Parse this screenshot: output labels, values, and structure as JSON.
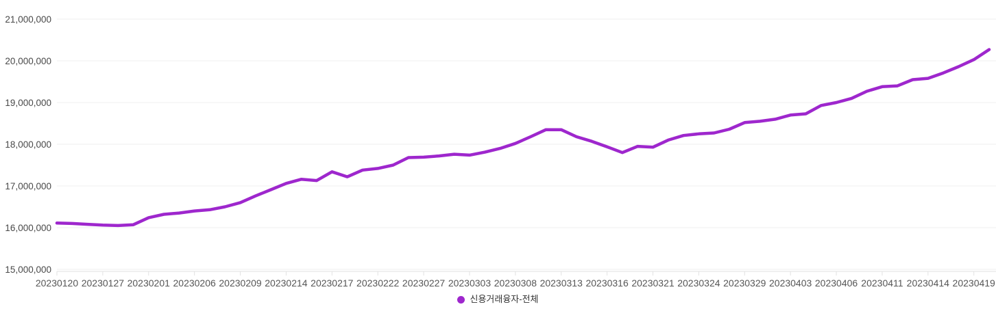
{
  "chart_data": {
    "type": "line",
    "title": "",
    "xlabel": "",
    "ylabel": "",
    "grid": "horizontal",
    "legend_position": "bottom-center",
    "ylim": [
      15000000,
      21000000
    ],
    "y_ticks": [
      15000000,
      16000000,
      17000000,
      18000000,
      19000000,
      20000000,
      21000000
    ],
    "y_tick_labels": [
      "15,000,000",
      "16,000,000",
      "17,000,000",
      "18,000,000",
      "19,000,000",
      "20,000,000",
      "21,000,000"
    ],
    "x_tick_every": 3,
    "x_tick_labels": [
      "20230120",
      "20230127",
      "20230201",
      "20230206",
      "20230209",
      "20230214",
      "20230217",
      "20230222",
      "20230227",
      "20230303",
      "20230308",
      "20230313",
      "20230316",
      "20230321",
      "20230324",
      "20230329",
      "20230403",
      "20230406",
      "20230411",
      "20230414",
      "20230419"
    ],
    "x": [
      "20230120",
      "20230125",
      "20230126",
      "20230127",
      "20230130",
      "20230131",
      "20230201",
      "20230202",
      "20230203",
      "20230206",
      "20230207",
      "20230208",
      "20230209",
      "20230210",
      "20230213",
      "20230214",
      "20230215",
      "20230216",
      "20230217",
      "20230220",
      "20230221",
      "20230222",
      "20230223",
      "20230224",
      "20230227",
      "20230228",
      "20230302",
      "20230303",
      "20230306",
      "20230307",
      "20230308",
      "20230309",
      "20230310",
      "20230313",
      "20230314",
      "20230315",
      "20230316",
      "20230317",
      "20230320",
      "20230321",
      "20230322",
      "20230323",
      "20230324",
      "20230327",
      "20230328",
      "20230329",
      "20230330",
      "20230331",
      "20230403",
      "20230404",
      "20230405",
      "20230406",
      "20230407",
      "20230410",
      "20230411",
      "20230412",
      "20230413",
      "20230414",
      "20230417",
      "20230418",
      "20230419",
      "20230420"
    ],
    "series": [
      {
        "name": "신용거래융자-전체",
        "color": "#9e27cd",
        "values": [
          16110000,
          16100000,
          16080000,
          16060000,
          16050000,
          16070000,
          16240000,
          16320000,
          16350000,
          16400000,
          16430000,
          16500000,
          16600000,
          16760000,
          16910000,
          17060000,
          17160000,
          17130000,
          17340000,
          17220000,
          17380000,
          17420000,
          17500000,
          17680000,
          17690000,
          17720000,
          17760000,
          17740000,
          17810000,
          17900000,
          18020000,
          18180000,
          18350000,
          18350000,
          18180000,
          18070000,
          17940000,
          17800000,
          17950000,
          17930000,
          18100000,
          18210000,
          18250000,
          18270000,
          18360000,
          18520000,
          18550000,
          18600000,
          18700000,
          18730000,
          18930000,
          19000000,
          19100000,
          19270000,
          19380000,
          19400000,
          19550000,
          19580000,
          19710000,
          19860000,
          20030000,
          20270000
        ]
      }
    ],
    "style": {
      "gridline_color": "#efefef",
      "axis_color": "#e2e2e2",
      "y_label_color": "#484848",
      "x_label_color": "#555555",
      "line_width": 4.5
    }
  }
}
